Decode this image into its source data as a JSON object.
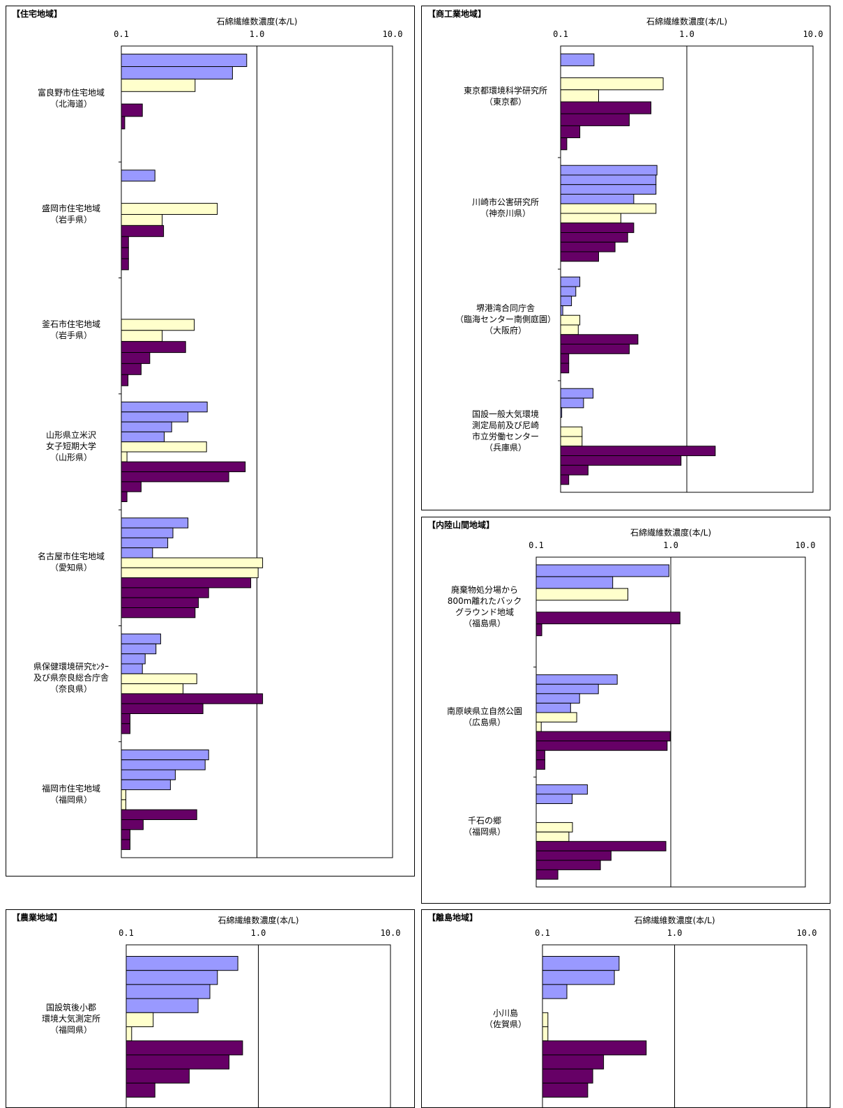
{
  "colors": {
    "blue": "#9999ff",
    "yellow": "#ffffcc",
    "purple": "#660066",
    "axis": "#000000"
  },
  "chart_data": [
    {
      "id": "residential",
      "type": "bar",
      "title": "【住宅地域】",
      "xlabel": "石綿繊維数濃度(本/L)",
      "xscale": "log",
      "xlim": [
        0.1,
        10.0
      ],
      "tick_labels": [
        "0.1",
        "1.0",
        "10.0"
      ],
      "orientation": "horizontal",
      "grid": false,
      "groups": [
        {
          "label": [
            "富良野市住宅地域",
            "（北海道）"
          ],
          "bars": [
            {
              "c": "blue",
              "v": 0.84
            },
            {
              "c": "blue",
              "v": 0.66
            },
            {
              "c": "yellow",
              "v": 0.35
            },
            {
              "c": "none",
              "v": 0
            },
            {
              "c": "purple",
              "v": 0.143
            },
            {
              "c": "purple",
              "v": 0.106
            },
            {
              "c": "none",
              "v": 0
            },
            {
              "c": "none",
              "v": 0
            }
          ]
        },
        {
          "label": [
            "盛岡市住宅地域",
            "（岩手県）"
          ],
          "bars": [
            {
              "c": "blue",
              "v": 0.177
            },
            {
              "c": "none",
              "v": 0
            },
            {
              "c": "none",
              "v": 0
            },
            {
              "c": "yellow",
              "v": 0.51
            },
            {
              "c": "yellow",
              "v": 0.2
            },
            {
              "c": "purple",
              "v": 0.205
            },
            {
              "c": "purple",
              "v": 0.113
            },
            {
              "c": "purple",
              "v": 0.113
            },
            {
              "c": "purple",
              "v": 0.113
            }
          ]
        },
        {
          "label": [
            "釜石市住宅地域",
            "（岩手県）"
          ],
          "bars": [
            {
              "c": "none",
              "v": 0
            },
            {
              "c": "none",
              "v": 0
            },
            {
              "c": "none",
              "v": 0
            },
            {
              "c": "yellow",
              "v": 0.345
            },
            {
              "c": "yellow",
              "v": 0.2
            },
            {
              "c": "purple",
              "v": 0.298
            },
            {
              "c": "purple",
              "v": 0.162
            },
            {
              "c": "purple",
              "v": 0.14
            },
            {
              "c": "purple",
              "v": 0.112
            }
          ]
        },
        {
          "label": [
            "山形県立米沢",
            "女子短期大学",
            "（山形県）"
          ],
          "bars": [
            {
              "c": "blue",
              "v": 0.43
            },
            {
              "c": "blue",
              "v": 0.31
            },
            {
              "c": "blue",
              "v": 0.235
            },
            {
              "c": "blue",
              "v": 0.207
            },
            {
              "c": "yellow",
              "v": 0.425
            },
            {
              "c": "yellow",
              "v": 0.11
            },
            {
              "c": "purple",
              "v": 0.82
            },
            {
              "c": "purple",
              "v": 0.62
            },
            {
              "c": "purple",
              "v": 0.14
            },
            {
              "c": "purple",
              "v": 0.11
            }
          ]
        },
        {
          "label": [
            "名古屋市住宅地域",
            "（愛知県）"
          ],
          "bars": [
            {
              "c": "blue",
              "v": 0.31
            },
            {
              "c": "blue",
              "v": 0.24
            },
            {
              "c": "blue",
              "v": 0.22
            },
            {
              "c": "blue",
              "v": 0.17
            },
            {
              "c": "yellow",
              "v": 1.1
            },
            {
              "c": "yellow",
              "v": 1.02
            },
            {
              "c": "purple",
              "v": 0.9
            },
            {
              "c": "purple",
              "v": 0.44
            },
            {
              "c": "purple",
              "v": 0.37
            },
            {
              "c": "purple",
              "v": 0.35
            }
          ]
        },
        {
          "label": [
            "県保健環境研究ｾﾝﾀｰ",
            "及び県奈良総合庁舎",
            "（奈良県）"
          ],
          "bars": [
            {
              "c": "blue",
              "v": 0.195
            },
            {
              "c": "blue",
              "v": 0.18
            },
            {
              "c": "blue",
              "v": 0.15
            },
            {
              "c": "blue",
              "v": 0.143
            },
            {
              "c": "yellow",
              "v": 0.36
            },
            {
              "c": "yellow",
              "v": 0.285
            },
            {
              "c": "purple",
              "v": 1.1
            },
            {
              "c": "purple",
              "v": 0.4
            },
            {
              "c": "purple",
              "v": 0.116
            },
            {
              "c": "purple",
              "v": 0.116
            }
          ]
        },
        {
          "label": [
            "福岡市住宅地域",
            "（福岡県）"
          ],
          "bars": [
            {
              "c": "blue",
              "v": 0.44
            },
            {
              "c": "blue",
              "v": 0.415
            },
            {
              "c": "blue",
              "v": 0.25
            },
            {
              "c": "blue",
              "v": 0.23
            },
            {
              "c": "yellow",
              "v": 0.108
            },
            {
              "c": "yellow",
              "v": 0.108
            },
            {
              "c": "purple",
              "v": 0.36
            },
            {
              "c": "purple",
              "v": 0.145
            },
            {
              "c": "purple",
              "v": 0.116
            },
            {
              "c": "purple",
              "v": 0.116
            }
          ]
        }
      ]
    },
    {
      "id": "commercial",
      "type": "bar",
      "title": "【商工業地域】",
      "xlabel": "石綿繊維数濃度(本/L)",
      "xscale": "log",
      "xlim": [
        0.1,
        10.0
      ],
      "tick_labels": [
        "0.1",
        "1.0",
        "10.0"
      ],
      "orientation": "horizontal",
      "grid": false,
      "groups": [
        {
          "label": [
            "東京都環境科学研究所",
            "（東京都）"
          ],
          "bars": [
            {
              "c": "blue",
              "v": 0.184
            },
            {
              "c": "none",
              "v": 0
            },
            {
              "c": "yellow",
              "v": 0.65
            },
            {
              "c": "yellow",
              "v": 0.2
            },
            {
              "c": "purple",
              "v": 0.52
            },
            {
              "c": "purple",
              "v": 0.35
            },
            {
              "c": "purple",
              "v": 0.142
            },
            {
              "c": "purple",
              "v": 0.112
            }
          ]
        },
        {
          "label": [
            "川崎市公害研究所",
            "（神奈川県）"
          ],
          "bars": [
            {
              "c": "blue",
              "v": 0.58
            },
            {
              "c": "blue",
              "v": 0.57
            },
            {
              "c": "blue",
              "v": 0.57
            },
            {
              "c": "blue",
              "v": 0.38
            },
            {
              "c": "yellow",
              "v": 0.57
            },
            {
              "c": "yellow",
              "v": 0.3
            },
            {
              "c": "purple",
              "v": 0.38
            },
            {
              "c": "purple",
              "v": 0.34
            },
            {
              "c": "purple",
              "v": 0.27
            },
            {
              "c": "purple",
              "v": 0.2
            }
          ]
        },
        {
          "label": [
            "堺港湾合同庁舎",
            "（臨海センター南側庭園）",
            "（大阪府）"
          ],
          "bars": [
            {
              "c": "blue",
              "v": 0.142
            },
            {
              "c": "blue",
              "v": 0.132
            },
            {
              "c": "blue",
              "v": 0.122
            },
            {
              "c": "blue",
              "v": 0.104
            },
            {
              "c": "yellow",
              "v": 0.142
            },
            {
              "c": "yellow",
              "v": 0.138
            },
            {
              "c": "purple",
              "v": 0.41
            },
            {
              "c": "purple",
              "v": 0.35
            },
            {
              "c": "purple",
              "v": 0.116
            },
            {
              "c": "purple",
              "v": 0.116
            }
          ]
        },
        {
          "label": [
            "国設一般大気環境",
            "測定局前及び尼崎",
            "市立労働センター",
            "（兵庫県）"
          ],
          "bars": [
            {
              "c": "blue",
              "v": 0.181
            },
            {
              "c": "blue",
              "v": 0.152
            },
            {
              "c": "blue",
              "v": 0.102
            },
            {
              "c": "none",
              "v": 0
            },
            {
              "c": "yellow",
              "v": 0.148
            },
            {
              "c": "yellow",
              "v": 0.148
            },
            {
              "c": "purple",
              "v": 1.68
            },
            {
              "c": "purple",
              "v": 0.9
            },
            {
              "c": "purple",
              "v": 0.165
            },
            {
              "c": "purple",
              "v": 0.116
            }
          ]
        }
      ]
    },
    {
      "id": "inland",
      "type": "bar",
      "title": "【内陸山間地域】",
      "xlabel": "石綿繊維数濃度(本/L)",
      "xscale": "log",
      "xlim": [
        0.1,
        10.0
      ],
      "tick_labels": [
        "0.1",
        "1.0",
        "10.0"
      ],
      "orientation": "horizontal",
      "grid": false,
      "groups": [
        {
          "label": [
            "廃棄物処分場から",
            "800m離れたバック",
            "グラウンド地域",
            "（福島県）"
          ],
          "bars": [
            {
              "c": "blue",
              "v": 0.97
            },
            {
              "c": "blue",
              "v": 0.37
            },
            {
              "c": "yellow",
              "v": 0.48
            },
            {
              "c": "none",
              "v": 0
            },
            {
              "c": "purple",
              "v": 1.17
            },
            {
              "c": "purple",
              "v": 0.11
            },
            {
              "c": "none",
              "v": 0
            },
            {
              "c": "none",
              "v": 0
            }
          ]
        },
        {
          "label": [
            "南原峡県立自然公園",
            "（広島県）"
          ],
          "bars": [
            {
              "c": "blue",
              "v": 0.4
            },
            {
              "c": "blue",
              "v": 0.29
            },
            {
              "c": "blue",
              "v": 0.21
            },
            {
              "c": "blue",
              "v": 0.18
            },
            {
              "c": "yellow",
              "v": 0.2
            },
            {
              "c": "yellow",
              "v": 0.109
            },
            {
              "c": "purple",
              "v": 0.99
            },
            {
              "c": "purple",
              "v": 0.94
            },
            {
              "c": "purple",
              "v": 0.116
            },
            {
              "c": "purple",
              "v": 0.116
            }
          ]
        },
        {
          "label": [
            "千石の郷",
            "（福岡県）"
          ],
          "bars": [
            {
              "c": "blue",
              "v": 0.24
            },
            {
              "c": "blue",
              "v": 0.185
            },
            {
              "c": "none",
              "v": 0
            },
            {
              "c": "none",
              "v": 0
            },
            {
              "c": "yellow",
              "v": 0.186
            },
            {
              "c": "yellow",
              "v": 0.175
            },
            {
              "c": "purple",
              "v": 0.92
            },
            {
              "c": "purple",
              "v": 0.36
            },
            {
              "c": "purple",
              "v": 0.3
            },
            {
              "c": "purple",
              "v": 0.145
            }
          ]
        }
      ]
    },
    {
      "id": "agricultural",
      "type": "bar",
      "title": "【農業地域】",
      "xlabel": "石綿繊維数濃度(本/L)",
      "xscale": "log",
      "xlim": [
        0.1,
        10.0
      ],
      "tick_labels": [
        "0.1",
        "1.0",
        "10.0"
      ],
      "orientation": "horizontal",
      "grid": false,
      "groups": [
        {
          "label": [
            "国設筑後小郡",
            "環境大気測定所",
            "（福岡県）"
          ],
          "bars": [
            {
              "c": "blue",
              "v": 0.7
            },
            {
              "c": "blue",
              "v": 0.49
            },
            {
              "c": "blue",
              "v": 0.43
            },
            {
              "c": "blue",
              "v": 0.35
            },
            {
              "c": "yellow",
              "v": 0.16
            },
            {
              "c": "yellow",
              "v": 0.11
            },
            {
              "c": "purple",
              "v": 0.76
            },
            {
              "c": "purple",
              "v": 0.6
            },
            {
              "c": "purple",
              "v": 0.3
            },
            {
              "c": "purple",
              "v": 0.165
            }
          ]
        }
      ]
    },
    {
      "id": "island",
      "type": "bar",
      "title": "【離島地域】",
      "xlabel": "石綿繊維数濃度(本/L)",
      "xscale": "log",
      "xlim": [
        0.1,
        10.0
      ],
      "tick_labels": [
        "0.1",
        "1.0",
        "10.0"
      ],
      "orientation": "horizontal",
      "grid": false,
      "groups": [
        {
          "label": [
            "小川島",
            "（佐賀県）"
          ],
          "bars": [
            {
              "c": "blue",
              "v": 0.38
            },
            {
              "c": "blue",
              "v": 0.35
            },
            {
              "c": "blue",
              "v": 0.153
            },
            {
              "c": "none",
              "v": 0
            },
            {
              "c": "yellow",
              "v": 0.11
            },
            {
              "c": "yellow",
              "v": 0.11
            },
            {
              "c": "purple",
              "v": 0.61
            },
            {
              "c": "purple",
              "v": 0.29
            },
            {
              "c": "purple",
              "v": 0.24
            },
            {
              "c": "purple",
              "v": 0.22
            }
          ]
        }
      ]
    }
  ]
}
